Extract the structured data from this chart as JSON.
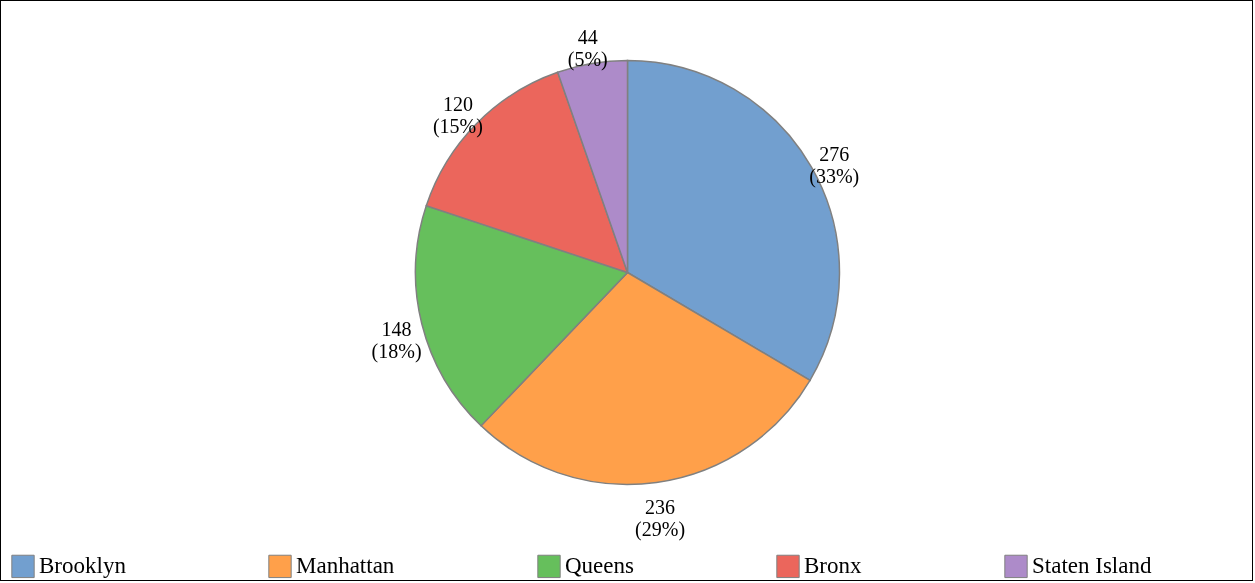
{
  "chart_data": {
    "type": "pie",
    "categories": [
      "Brooklyn",
      "Manhattan",
      "Queens",
      "Bronx",
      "Staten Island"
    ],
    "values": [
      276,
      236,
      148,
      120,
      44
    ],
    "colors": [
      "#729fcf",
      "#ffa04a",
      "#66bf5c",
      "#eb665c",
      "#ad8bc9"
    ],
    "value_labels": [
      "276 (33%)",
      "236 (29%)",
      "148 (18%)",
      "120 (15%)",
      "44 (5%)"
    ],
    "legend": "bottom"
  }
}
